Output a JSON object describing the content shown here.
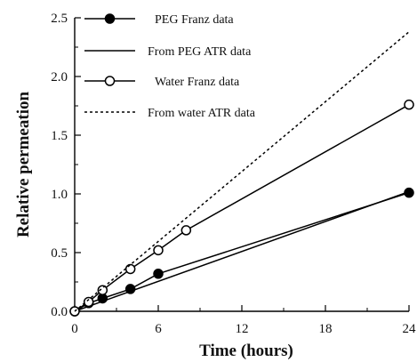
{
  "chart_data": {
    "type": "line",
    "xlabel": "Time (hours)",
    "ylabel": "Relative permeation",
    "xlim": [
      0,
      24
    ],
    "ylim": [
      0,
      2.5
    ],
    "xticks": [
      0,
      6,
      12,
      18,
      24
    ],
    "yticks": [
      0.0,
      0.5,
      1.0,
      1.5,
      2.0,
      2.5
    ],
    "xtick_labels": [
      "0",
      "6",
      "12",
      "18",
      "24"
    ],
    "ytick_labels": [
      "0.0",
      "0.5",
      "1.0",
      "1.5",
      "2.0",
      "2.5"
    ],
    "grid": false,
    "legend_position": "top-left",
    "series": [
      {
        "name": "PEG Franz data",
        "style": "line-filled-markers",
        "color": "#000000",
        "x": [
          0,
          1,
          2,
          4,
          6,
          24
        ],
        "y": [
          0.0,
          0.07,
          0.11,
          0.19,
          0.32,
          1.01
        ]
      },
      {
        "name": "From PEG ATR data",
        "style": "solid-line",
        "color": "#000000",
        "x": [
          0,
          24
        ],
        "y": [
          0.0,
          1.02
        ]
      },
      {
        "name": "Water Franz data",
        "style": "line-open-markers",
        "color": "#000000",
        "x": [
          0,
          1,
          2,
          4,
          6,
          8,
          24
        ],
        "y": [
          0.0,
          0.08,
          0.18,
          0.36,
          0.52,
          0.69,
          1.76
        ]
      },
      {
        "name": "From water ATR data",
        "style": "dotted-line",
        "color": "#000000",
        "x": [
          0,
          24
        ],
        "y": [
          0.0,
          2.38
        ]
      }
    ]
  }
}
